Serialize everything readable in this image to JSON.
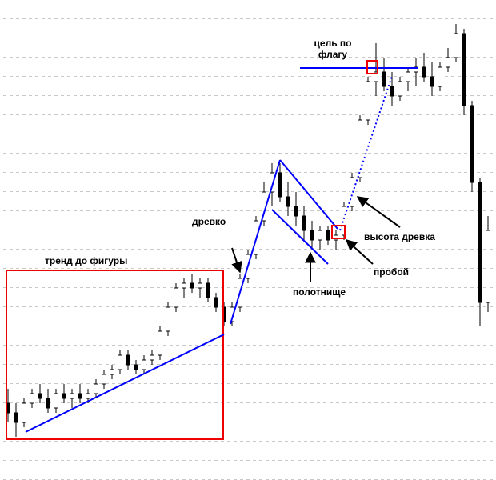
{
  "chart_data": {
    "type": "candlestick",
    "ylim": [
      0,
      100
    ],
    "series": [
      {
        "open": [
          16,
          14,
          12,
          16,
          18,
          17,
          15,
          18,
          17,
          18,
          17,
          18,
          20,
          22,
          23,
          26,
          24,
          23,
          25,
          26,
          31,
          36,
          40,
          41,
          40,
          41,
          38,
          36,
          33,
          36,
          42,
          47,
          54,
          60,
          64,
          59,
          57,
          55,
          52,
          50,
          52,
          50,
          51,
          57,
          63,
          75,
          83,
          85,
          82,
          80,
          83,
          85,
          86,
          84,
          82,
          86,
          88,
          93,
          78,
          62,
          37
        ],
        "high": [
          19,
          16,
          17,
          19,
          20,
          19,
          19,
          20,
          19,
          20,
          19,
          21,
          23,
          24,
          27,
          27,
          25,
          26,
          27,
          32,
          37,
          41,
          42,
          43,
          42,
          42,
          39,
          37,
          37,
          43,
          48,
          55,
          62,
          66,
          66,
          62,
          60,
          57,
          54,
          53,
          53,
          52,
          58,
          64,
          76,
          84,
          91,
          88,
          85,
          84,
          86,
          88,
          89,
          87,
          87,
          90,
          95,
          94,
          79,
          63,
          55
        ],
        "low": [
          12,
          9,
          11,
          15,
          16,
          14,
          14,
          16,
          15,
          16,
          16,
          17,
          19,
          21,
          22,
          23,
          22,
          22,
          24,
          25,
          30,
          35,
          38,
          39,
          38,
          37,
          35,
          32,
          32,
          35,
          41,
          46,
          53,
          57,
          58,
          55,
          53,
          50,
          48,
          48,
          49,
          48,
          50,
          56,
          62,
          74,
          80,
          81,
          78,
          79,
          81,
          82,
          83,
          80,
          81,
          85,
          87,
          76,
          60,
          32,
          35
        ],
        "close": [
          14,
          12,
          16,
          18,
          17,
          15,
          18,
          17,
          18,
          17,
          18,
          20,
          22,
          23,
          26,
          24,
          23,
          25,
          26,
          31,
          36,
          40,
          41,
          40,
          41,
          38,
          36,
          33,
          36,
          42,
          47,
          54,
          60,
          64,
          59,
          57,
          55,
          52,
          50,
          52,
          50,
          51,
          57,
          63,
          75,
          83,
          85,
          82,
          80,
          83,
          85,
          86,
          84,
          82,
          86,
          88,
          93,
          78,
          62,
          37,
          52
        ]
      }
    ],
    "annotations": [
      "цель по флагу",
      "древко",
      "тренд до фигуры",
      "полотнище",
      "высота древка",
      "пробой"
    ]
  }
}
